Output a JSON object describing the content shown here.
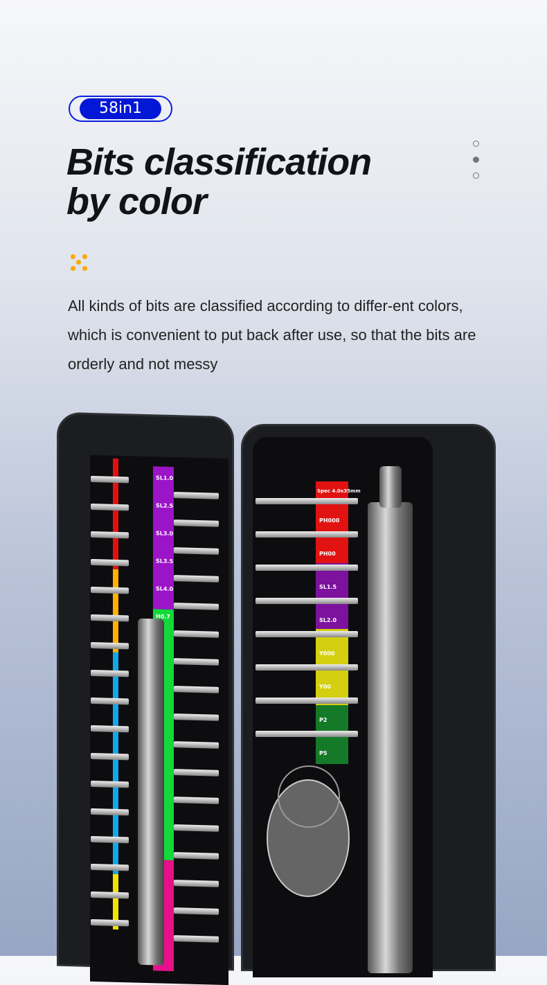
{
  "badge": {
    "label": "58in1",
    "color": "#0317d6"
  },
  "title": {
    "line1": "Bits classification",
    "line2": "by color"
  },
  "pager": {
    "count": 3,
    "active": 1
  },
  "description": "All kinds of bits are classified according to differ-ent colors, which is convenient to put back after use, so that the bits are orderly and not messy",
  "accent_color": "#ffa800",
  "left_case": {
    "labels": [
      "SL1.0",
      "SL2.5",
      "SL3.0",
      "SL3.5",
      "SL4.0",
      "H0.7"
    ]
  },
  "right_case": {
    "spec": "Spec 4.0x35mm",
    "labels": [
      "PH000",
      "PH00",
      "SL1.5",
      "SL2.0",
      "Y000",
      "Y00",
      "P2",
      "P5"
    ]
  }
}
